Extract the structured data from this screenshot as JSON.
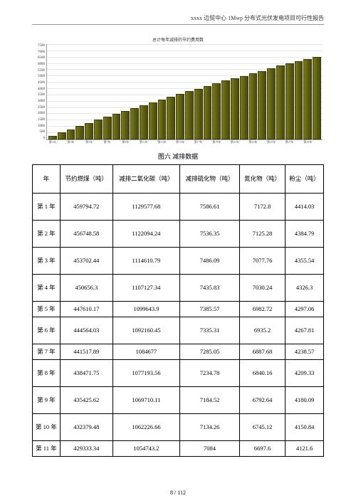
{
  "header": {
    "title": "xxxx 边贸中心 1Mwp 分布式光伏发电项目可行性报告"
  },
  "chart": {
    "type": "bar",
    "title": "总计每年减排的节约费用数",
    "bar_color_start": "#7a7a1f",
    "bar_color_end": "#4a4a0a",
    "border_color": "#3d3d08",
    "grid_color": "#e6e6e6",
    "ymax": 7500,
    "ytick_step": 500,
    "y_labels": [
      "7500",
      "7000",
      "6500",
      "6000",
      "5500",
      "5000",
      "4500",
      "4000",
      "3500",
      "3000",
      "2500",
      "2000",
      "1500",
      "1000",
      "500",
      "0"
    ],
    "values": [
      300,
      550,
      800,
      1050,
      1300,
      1550,
      1780,
      2000,
      2250,
      2480,
      2700,
      2930,
      3150,
      3360,
      3570,
      3800,
      4000,
      4200,
      4400,
      4620,
      4820,
      5010,
      5200,
      5400,
      5600,
      5800,
      5980,
      6160,
      6350,
      6520
    ],
    "x_labels": [
      "第1年",
      "第2年",
      "第3年",
      "第4年",
      "第5年",
      "第6年",
      "第7年",
      "第8年",
      "第9年",
      "第10年",
      "第11年",
      "第12年",
      "第13年",
      "第14年",
      "第15年",
      "第16年",
      "第17年",
      "第18年",
      "第19年",
      "第20年",
      "第21年",
      "第22年",
      "第23年",
      "第24年",
      "第25年",
      "第26年",
      "第27年",
      "第28年",
      "第29年",
      "第30年"
    ]
  },
  "figure_caption": "图六   减排数据",
  "table": {
    "columns": [
      "年",
      "节约燃煤（吨）",
      "减排二氧化碳（吨）",
      "减排硫化物（吨）",
      "氮化物（吨）",
      "粉尘（吨）"
    ],
    "rows": [
      {
        "c0": "第 1 年",
        "c1": "459794.72",
        "c2": "1129577.68",
        "c3": "7586.61",
        "c4": "7172.8",
        "c5": "4414.03",
        "tall": true
      },
      {
        "c0": "第 2 年",
        "c1": "456748.58",
        "c2": "1122094.24",
        "c3": "7536.35",
        "c4": "7125.28",
        "c5": "4384.79",
        "tall": true
      },
      {
        "c0": "第 3 年",
        "c1": "453702.44",
        "c2": "1114610.79",
        "c3": "7486.09",
        "c4": "7077.76",
        "c5": "4355.54",
        "tall": true
      },
      {
        "c0": "第 4 年",
        "c1": "450656.3",
        "c2": "1107127.34",
        "c3": "7435.83",
        "c4": "7030.24",
        "c5": "4326.3",
        "tall": true
      },
      {
        "c0": "第 5 年",
        "c1": "447610.17",
        "c2": "1099643.9",
        "c3": "7385.57",
        "c4": "6982.72",
        "c5": "4297.06",
        "tall": false
      },
      {
        "c0": "第 6 年",
        "c1": "444564.03",
        "c2": "1092160.45",
        "c3": "7335.31",
        "c4": "6935.2",
        "c5": "4267.81",
        "tall": true
      },
      {
        "c0": "第 7 年",
        "c1": "441517.89",
        "c2": "1084677",
        "c3": "7285.05",
        "c4": "6887.68",
        "c5": "4238.57",
        "tall": false
      },
      {
        "c0": "第 8 年",
        "c1": "438471.75",
        "c2": "1077193.56",
        "c3": "7234.78",
        "c4": "6840.16",
        "c5": "4209.33",
        "tall": true
      },
      {
        "c0": "第 9 年",
        "c1": "435425.62",
        "c2": "1069710.11",
        "c3": "7184.52",
        "c4": "6792.64",
        "c5": "4180.09",
        "tall": true
      },
      {
        "c0": "第 10 年",
        "c1": "432379.48",
        "c2": "1062226.66",
        "c3": "7134.26",
        "c4": "6745.12",
        "c5": "4150.84",
        "tall": true
      },
      {
        "c0": "第 11 年",
        "c1": "429333.34",
        "c2": "1054743.2",
        "c3": "7084",
        "c4": "6697.6",
        "c5": "4121.6",
        "tall": false
      }
    ]
  },
  "footer": {
    "page": "8",
    "sep": "/",
    "total": "112"
  }
}
